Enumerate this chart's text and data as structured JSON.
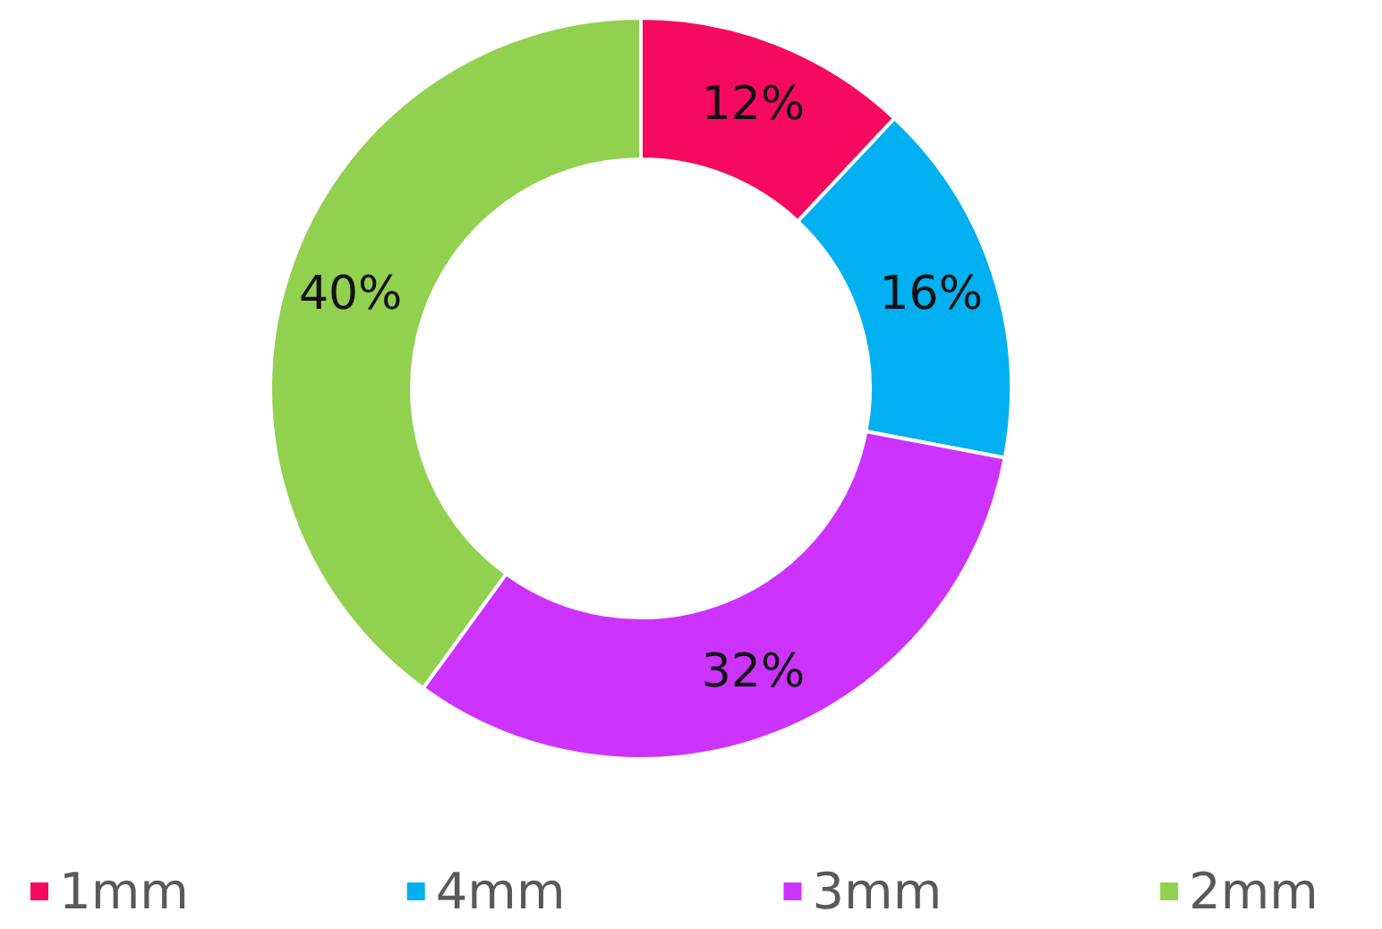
{
  "chart_data": {
    "type": "donut",
    "categories": [
      "1mm",
      "4mm",
      "3mm",
      "2mm"
    ],
    "values": [
      12,
      16,
      32,
      40
    ],
    "colors": [
      "#f50a5f",
      "#00b0f0",
      "#cc33ff",
      "#92d050"
    ],
    "value_labels": [
      "12%",
      "16%",
      "32%",
      "40%"
    ],
    "legend": "bottom"
  }
}
